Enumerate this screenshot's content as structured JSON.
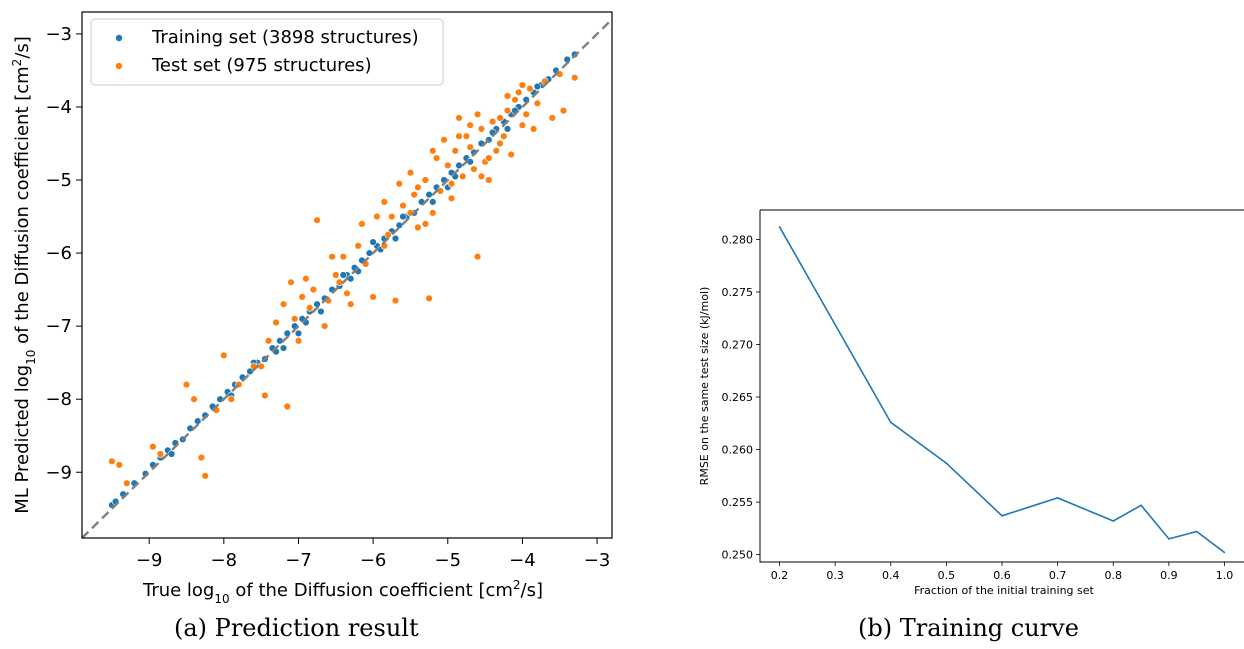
{
  "colors": {
    "training": "#1f77b4",
    "test": "#ff7f0e",
    "diagonal": "#808080",
    "curve": "#1f77b4"
  },
  "captions": {
    "a": "(a) Prediction result",
    "b": "(b) Training curve"
  },
  "chart_data": [
    {
      "type": "scatter",
      "xlabel_parts": [
        "True log",
        "10",
        " of the Diffusion coefficient [cm",
        "2",
        "/s]"
      ],
      "ylabel_parts": [
        "ML Predicted log",
        "10",
        " of the Diffusion coefficient [cm",
        "2",
        "/s]"
      ],
      "xlim": [
        -9.9,
        -2.8
      ],
      "ylim": [
        -9.9,
        -2.7
      ],
      "x_ticks": [
        -9,
        -8,
        -7,
        -6,
        -5,
        -4,
        -3
      ],
      "y_ticks": [
        -9,
        -8,
        -7,
        -6,
        -5,
        -4,
        -3
      ],
      "tick_labels": [
        "−9",
        "−8",
        "−7",
        "−6",
        "−5",
        "−4",
        "−3"
      ],
      "legend_position": "upper-left",
      "diagonal_line": true,
      "series": [
        {
          "name": "Training set (3898 structures)",
          "points": [
            [
              -9.5,
              -9.45
            ],
            [
              -9.45,
              -9.4
            ],
            [
              -9.35,
              -9.3
            ],
            [
              -9.2,
              -9.15
            ],
            [
              -9.05,
              -9.02
            ],
            [
              -8.95,
              -8.9
            ],
            [
              -8.85,
              -8.8
            ],
            [
              -8.75,
              -8.7
            ],
            [
              -8.65,
              -8.6
            ],
            [
              -8.55,
              -8.55
            ],
            [
              -8.45,
              -8.4
            ],
            [
              -8.35,
              -8.3
            ],
            [
              -8.25,
              -8.22
            ],
            [
              -8.15,
              -8.1
            ],
            [
              -8.05,
              -8.0
            ],
            [
              -7.95,
              -7.9
            ],
            [
              -7.9,
              -7.95
            ],
            [
              -7.85,
              -7.8
            ],
            [
              -7.75,
              -7.7
            ],
            [
              -7.65,
              -7.62
            ],
            [
              -7.55,
              -7.5
            ],
            [
              -7.45,
              -7.45
            ],
            [
              -7.35,
              -7.3
            ],
            [
              -7.3,
              -7.35
            ],
            [
              -7.25,
              -7.2
            ],
            [
              -7.15,
              -7.1
            ],
            [
              -7.05,
              -7.0
            ],
            [
              -6.95,
              -6.9
            ],
            [
              -6.9,
              -6.95
            ],
            [
              -6.85,
              -6.8
            ],
            [
              -6.75,
              -6.7
            ],
            [
              -6.65,
              -6.62
            ],
            [
              -6.55,
              -6.5
            ],
            [
              -6.45,
              -6.45
            ],
            [
              -6.35,
              -6.3
            ],
            [
              -6.3,
              -6.35
            ],
            [
              -6.25,
              -6.2
            ],
            [
              -6.15,
              -6.1
            ],
            [
              -6.05,
              -6.0
            ],
            [
              -5.95,
              -5.9
            ],
            [
              -5.9,
              -5.95
            ],
            [
              -5.85,
              -5.8
            ],
            [
              -5.75,
              -5.7
            ],
            [
              -5.65,
              -5.62
            ],
            [
              -5.55,
              -5.5
            ],
            [
              -5.45,
              -5.45
            ],
            [
              -5.35,
              -5.3
            ],
            [
              -5.25,
              -5.2
            ],
            [
              -5.15,
              -5.1
            ],
            [
              -5.05,
              -5.0
            ],
            [
              -4.95,
              -4.9
            ],
            [
              -4.85,
              -4.8
            ],
            [
              -4.75,
              -4.7
            ],
            [
              -4.65,
              -4.62
            ],
            [
              -4.55,
              -4.5
            ],
            [
              -4.45,
              -4.45
            ],
            [
              -4.35,
              -4.3
            ],
            [
              -4.25,
              -4.2
            ],
            [
              -4.15,
              -4.1
            ],
            [
              -4.05,
              -4.0
            ],
            [
              -3.95,
              -3.9
            ],
            [
              -3.85,
              -3.8
            ],
            [
              -3.75,
              -3.7
            ],
            [
              -3.65,
              -3.62
            ],
            [
              -3.55,
              -3.5
            ],
            [
              -3.4,
              -3.35
            ],
            [
              -3.3,
              -3.28
            ],
            [
              -7.2,
              -7.3
            ],
            [
              -6.7,
              -6.8
            ],
            [
              -6.2,
              -6.25
            ],
            [
              -5.7,
              -5.8
            ],
            [
              -5.2,
              -5.3
            ],
            [
              -4.7,
              -4.75
            ],
            [
              -4.2,
              -4.3
            ],
            [
              -7.6,
              -7.5
            ],
            [
              -6.4,
              -6.3
            ],
            [
              -5.0,
              -5.1
            ],
            [
              -4.4,
              -4.35
            ],
            [
              -8.7,
              -8.75
            ],
            [
              -7.0,
              -7.1
            ],
            [
              -6.0,
              -5.85
            ],
            [
              -5.6,
              -5.5
            ],
            [
              -4.9,
              -4.95
            ],
            [
              -4.1,
              -4.05
            ],
            [
              -3.8,
              -3.72
            ]
          ]
        },
        {
          "name": "Test set (975 structures)",
          "points": [
            [
              -9.5,
              -8.85
            ],
            [
              -9.4,
              -8.9
            ],
            [
              -9.3,
              -9.15
            ],
            [
              -8.95,
              -8.65
            ],
            [
              -8.85,
              -8.75
            ],
            [
              -8.5,
              -7.8
            ],
            [
              -8.4,
              -8.0
            ],
            [
              -8.3,
              -8.8
            ],
            [
              -8.25,
              -9.05
            ],
            [
              -8.0,
              -7.4
            ],
            [
              -7.8,
              -7.8
            ],
            [
              -7.5,
              -7.55
            ],
            [
              -7.45,
              -7.95
            ],
            [
              -7.4,
              -7.2
            ],
            [
              -7.3,
              -6.95
            ],
            [
              -7.2,
              -6.7
            ],
            [
              -7.15,
              -8.1
            ],
            [
              -7.1,
              -6.4
            ],
            [
              -7.05,
              -6.9
            ],
            [
              -6.95,
              -6.6
            ],
            [
              -6.9,
              -6.35
            ],
            [
              -6.8,
              -6.5
            ],
            [
              -6.75,
              -5.55
            ],
            [
              -6.6,
              -6.65
            ],
            [
              -6.5,
              -6.3
            ],
            [
              -6.4,
              -6.05
            ],
            [
              -6.3,
              -6.7
            ],
            [
              -6.2,
              -5.9
            ],
            [
              -6.1,
              -6.15
            ],
            [
              -6.0,
              -6.6
            ],
            [
              -5.95,
              -5.5
            ],
            [
              -5.85,
              -5.9
            ],
            [
              -5.8,
              -5.75
            ],
            [
              -5.7,
              -6.65
            ],
            [
              -5.6,
              -5.35
            ],
            [
              -5.5,
              -5.45
            ],
            [
              -5.4,
              -5.65
            ],
            [
              -5.3,
              -5.0
            ],
            [
              -5.25,
              -6.62
            ],
            [
              -5.2,
              -4.6
            ],
            [
              -5.1,
              -5.15
            ],
            [
              -5.0,
              -4.8
            ],
            [
              -4.95,
              -5.25
            ],
            [
              -4.85,
              -4.4
            ],
            [
              -4.8,
              -4.95
            ],
            [
              -4.7,
              -4.55
            ],
            [
              -4.6,
              -6.05
            ],
            [
              -4.55,
              -4.3
            ],
            [
              -4.5,
              -4.75
            ],
            [
              -4.45,
              -5.0
            ],
            [
              -4.4,
              -4.2
            ],
            [
              -4.3,
              -4.5
            ],
            [
              -4.2,
              -4.05
            ],
            [
              -4.15,
              -4.65
            ],
            [
              -4.1,
              -3.9
            ],
            [
              -4.0,
              -4.25
            ],
            [
              -3.95,
              -4.1
            ],
            [
              -3.9,
              -3.75
            ],
            [
              -3.8,
              -3.95
            ],
            [
              -3.7,
              -3.65
            ],
            [
              -3.6,
              -4.15
            ],
            [
              -3.5,
              -3.55
            ],
            [
              -3.45,
              -4.05
            ],
            [
              -3.3,
              -3.6
            ],
            [
              -5.5,
              -4.9
            ],
            [
              -5.4,
              -5.1
            ],
            [
              -5.2,
              -5.45
            ],
            [
              -4.9,
              -4.6
            ],
            [
              -4.75,
              -4.4
            ],
            [
              -4.65,
              -4.85
            ],
            [
              -4.35,
              -4.6
            ],
            [
              -4.25,
              -4.4
            ],
            [
              -5.05,
              -4.45
            ],
            [
              -4.85,
              -4.15
            ],
            [
              -4.6,
              -4.1
            ],
            [
              -4.2,
              -3.85
            ],
            [
              -6.15,
              -5.6
            ],
            [
              -5.85,
              -5.3
            ],
            [
              -6.55,
              -6.05
            ],
            [
              -7.0,
              -7.2
            ],
            [
              -6.65,
              -7.0
            ],
            [
              -5.65,
              -5.05
            ],
            [
              -4.55,
              -4.95
            ],
            [
              -5.3,
              -5.6
            ],
            [
              -4.05,
              -3.8
            ],
            [
              -3.85,
              -4.3
            ],
            [
              -5.15,
              -4.7
            ],
            [
              -4.95,
              -5.05
            ],
            [
              -4.45,
              -4.7
            ],
            [
              -4.3,
              -4.15
            ],
            [
              -5.75,
              -5.5
            ],
            [
              -6.35,
              -6.55
            ],
            [
              -7.6,
              -7.55
            ],
            [
              -8.1,
              -8.15
            ],
            [
              -7.9,
              -8.0
            ],
            [
              -6.85,
              -6.75
            ],
            [
              -6.45,
              -6.4
            ],
            [
              -5.45,
              -5.2
            ],
            [
              -4.7,
              -4.25
            ],
            [
              -4.0,
              -3.7
            ]
          ]
        }
      ]
    },
    {
      "type": "line",
      "xlabel": "Fraction of the initial training set",
      "ylabel": "RMSE on the same test size (kJ/mol)",
      "xlim": [
        0.165,
        1.035
      ],
      "ylim": [
        0.2493,
        0.2828
      ],
      "x_ticks": [
        0.2,
        0.3,
        0.4,
        0.5,
        0.6,
        0.7,
        0.8,
        0.9,
        1.0
      ],
      "x_tick_labels": [
        "0.2",
        "0.3",
        "0.4",
        "0.5",
        "0.6",
        "0.7",
        "0.8",
        "0.9",
        "1.0"
      ],
      "y_ticks": [
        0.25,
        0.255,
        0.26,
        0.265,
        0.27,
        0.275,
        0.28
      ],
      "y_tick_labels": [
        "0.250",
        "0.255",
        "0.260",
        "0.265",
        "0.270",
        "0.275",
        "0.280"
      ],
      "x": [
        0.2,
        0.4,
        0.5,
        0.6,
        0.7,
        0.8,
        0.85,
        0.9,
        0.95,
        1.0
      ],
      "y": [
        0.2812,
        0.2626,
        0.2587,
        0.2537,
        0.2554,
        0.2532,
        0.2547,
        0.2515,
        0.2522,
        0.2502
      ]
    }
  ]
}
